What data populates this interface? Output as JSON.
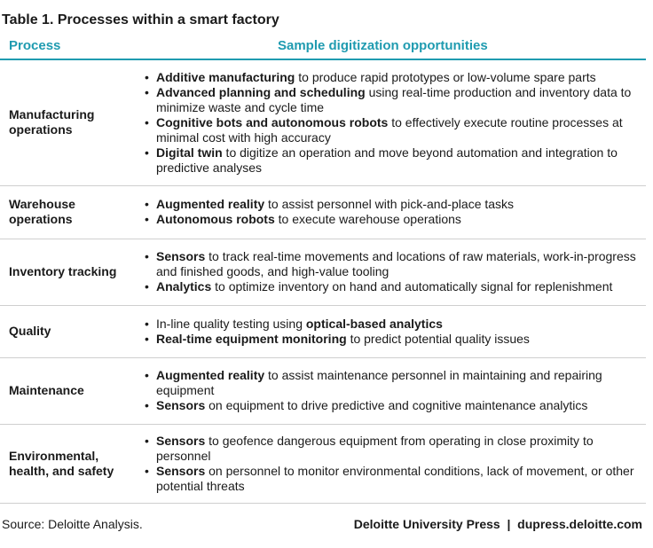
{
  "title": "Table 1. Processes within a smart factory",
  "table": {
    "header": {
      "process": "Process",
      "opportunities": "Sample digitization opportunities",
      "color": "#1f9bb0"
    },
    "rows": [
      {
        "process": "Manufacturing operations",
        "items": [
          [
            {
              "text": "Additive manufacturing",
              "bold": true
            },
            {
              "text": " to produce rapid prototypes or low-volume spare parts",
              "bold": false
            }
          ],
          [
            {
              "text": "Advanced planning and scheduling",
              "bold": true
            },
            {
              "text": " using real-time production and inventory data to minimize waste and cycle time",
              "bold": false
            }
          ],
          [
            {
              "text": "Cognitive bots and autonomous robots",
              "bold": true
            },
            {
              "text": " to effectively execute routine processes at minimal cost with high accuracy",
              "bold": false
            }
          ],
          [
            {
              "text": "Digital twin",
              "bold": true
            },
            {
              "text": " to digitize an operation and move beyond automation and integration to predictive analyses",
              "bold": false
            }
          ]
        ]
      },
      {
        "process": "Warehouse operations",
        "items": [
          [
            {
              "text": "Augmented reality",
              "bold": true
            },
            {
              "text": " to assist personnel with pick-and-place tasks",
              "bold": false
            }
          ],
          [
            {
              "text": "Autonomous robots",
              "bold": true
            },
            {
              "text": " to execute warehouse operations",
              "bold": false
            }
          ]
        ]
      },
      {
        "process": "Inventory tracking",
        "items": [
          [
            {
              "text": "Sensors",
              "bold": true
            },
            {
              "text": " to track real-time movements and locations of raw materials, work-in-progress and finished goods, and high-value tooling",
              "bold": false
            }
          ],
          [
            {
              "text": "Analytics",
              "bold": true
            },
            {
              "text": " to optimize inventory on hand and automatically signal for replenishment",
              "bold": false
            }
          ]
        ]
      },
      {
        "process": "Quality",
        "items": [
          [
            {
              "text": "In-line quality testing using ",
              "bold": false
            },
            {
              "text": "optical-based analytics",
              "bold": true
            }
          ],
          [
            {
              "text": "Real-time equipment monitoring",
              "bold": true
            },
            {
              "text": " to predict potential quality issues",
              "bold": false
            }
          ]
        ]
      },
      {
        "process": "Maintenance",
        "items": [
          [
            {
              "text": "Augmented reality",
              "bold": true
            },
            {
              "text": " to assist maintenance personnel in maintaining and repairing equipment",
              "bold": false
            }
          ],
          [
            {
              "text": "Sensors",
              "bold": true
            },
            {
              "text": " on equipment to drive predictive and cognitive maintenance analytics",
              "bold": false
            }
          ]
        ]
      },
      {
        "process": "Environmental, health, and safety",
        "items": [
          [
            {
              "text": "Sensors",
              "bold": true
            },
            {
              "text": " to geofence dangerous equipment from operating in close proximity to personnel",
              "bold": false
            }
          ],
          [
            {
              "text": "Sensors",
              "bold": true
            },
            {
              "text": " on personnel to monitor environmental conditions, lack of movement, or other potential threats",
              "bold": false
            }
          ]
        ]
      }
    ]
  },
  "footer": {
    "source": "Source: Deloitte Analysis.",
    "credit": "Deloitte University Press  |  dupress.deloitte.com"
  }
}
